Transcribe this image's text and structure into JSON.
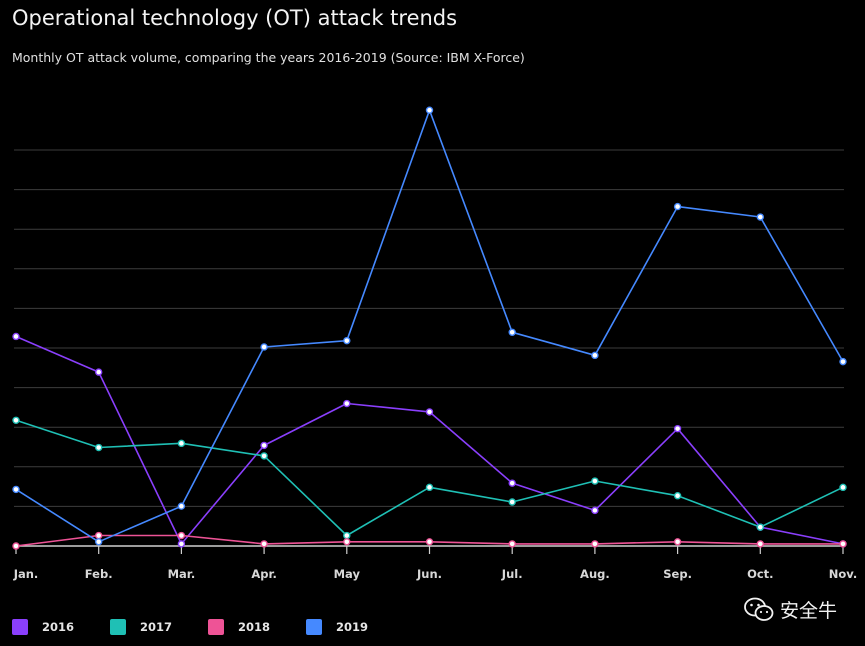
{
  "header": {
    "title": "Operational technology (OT) attack trends",
    "subtitle": "Monthly OT attack volume, comparing the years 2016-2019 (Source: IBM X-Force)"
  },
  "watermark": {
    "text": "安全牛",
    "icon": "wechat-icon"
  },
  "chart_data": {
    "type": "line",
    "title": "Operational technology (OT) attack trends",
    "subtitle": "Monthly OT attack volume, comparing the years 2016-2019 (Source: IBM X-Force)",
    "xlabel": "",
    "ylabel": "",
    "categories": [
      "Jan.",
      "Feb.",
      "Mar.",
      "Apr.",
      "May",
      "Jun.",
      "Jul.",
      "Aug.",
      "Sep.",
      "Oct.",
      "Nov."
    ],
    "ylim": [
      0,
      105
    ],
    "y_grid_lines": 10,
    "grid": true,
    "y_tick_labels_shown": false,
    "legend_position": "bottom-left",
    "series": [
      {
        "name": "2016",
        "color": "#8a3ffc",
        "values": [
          50,
          41.5,
          0.5,
          24,
          34,
          32,
          15,
          8.5,
          28,
          4.5,
          0.5
        ]
      },
      {
        "name": "2017",
        "color": "#1fc0b5",
        "values": [
          30,
          23.5,
          24.5,
          21.5,
          2.5,
          14,
          10.5,
          15.5,
          12,
          4.5,
          14
        ]
      },
      {
        "name": "2018",
        "color": "#ee5396",
        "values": [
          0,
          2.5,
          2.5,
          0.5,
          1,
          1,
          0.5,
          0.5,
          1,
          0.5,
          0.5
        ]
      },
      {
        "name": "2019",
        "color": "#4589ff",
        "values": [
          13.5,
          1,
          9.5,
          47.5,
          49,
          104,
          51,
          45.5,
          81,
          78.5,
          44
        ]
      }
    ]
  }
}
